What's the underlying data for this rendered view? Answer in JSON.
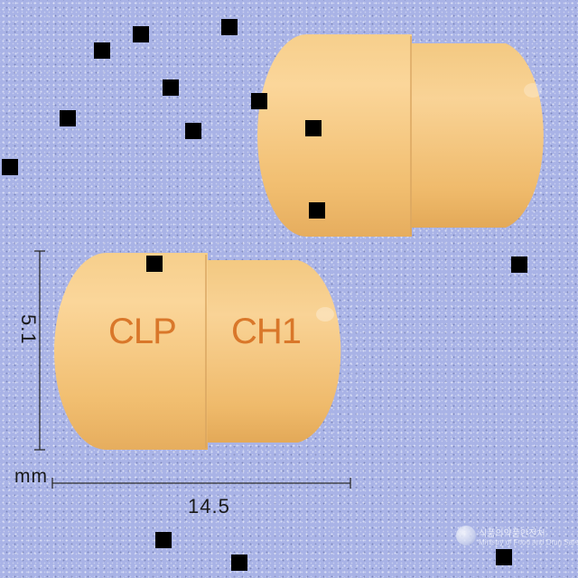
{
  "capsules": [
    {
      "name": "capsule-top-right",
      "imprint_cap": "",
      "imprint_body": ""
    },
    {
      "name": "capsule-bottom-left",
      "imprint_cap": "CLP",
      "imprint_body": "CH1"
    }
  ],
  "dimensions": {
    "height": "5.1",
    "width": "14.5",
    "unit": "mm"
  },
  "watermark": {
    "line1": "식품의약품안전처",
    "line2": "Ministry of Food and Drug Safety"
  },
  "colors": {
    "background": "#a9b3e6",
    "capsule": "#f2c276",
    "imprint": "#d9772a"
  }
}
